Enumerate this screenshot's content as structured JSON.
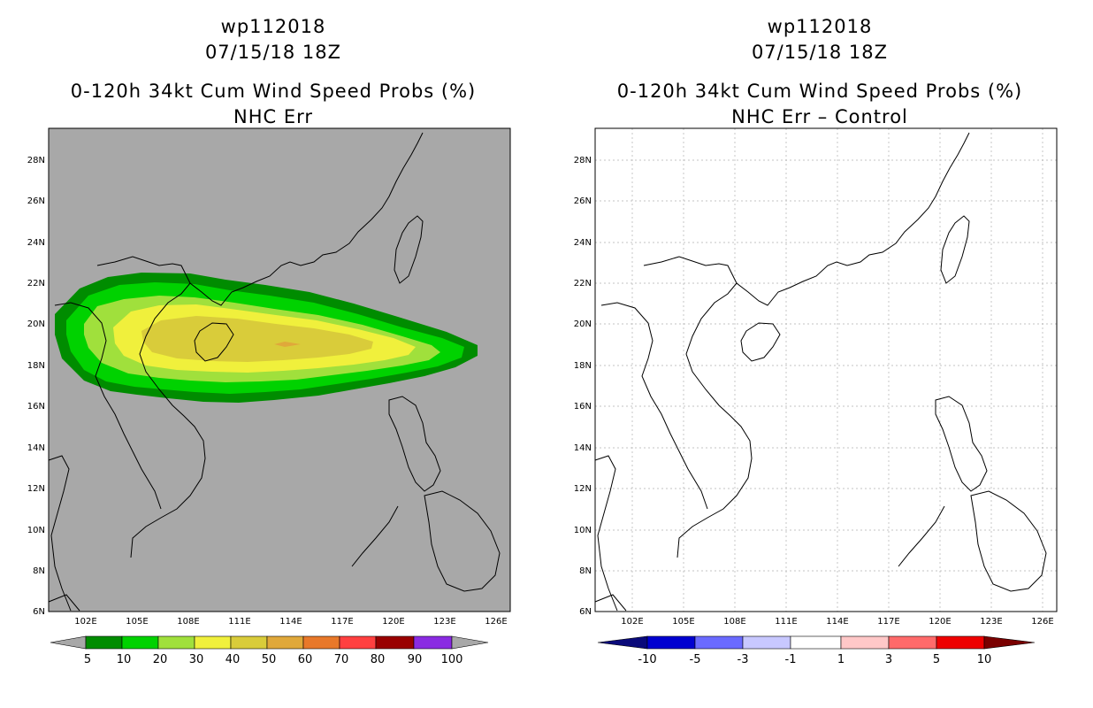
{
  "panels": [
    {
      "id": "left",
      "storm_id": "wp112018",
      "datetime": "07/15/18 18Z",
      "product": "0-120h 34kt Cum Wind Speed Probs (%)",
      "subtitle": "NHC Err",
      "background": "#a8a8a8",
      "gridlines": false,
      "colorbar": {
        "labels": [
          "5",
          "10",
          "20",
          "30",
          "40",
          "50",
          "60",
          "70",
          "80",
          "90",
          "100"
        ],
        "colors": [
          "#008c00",
          "#00d200",
          "#a0e03c",
          "#f0f03c",
          "#d9cc3a",
          "#e0a83a",
          "#e8782a",
          "#ff4040",
          "#990000",
          "#8a2be2"
        ],
        "under_color": "#a8a8a8",
        "over_color": "#a8a8a8"
      }
    },
    {
      "id": "right",
      "storm_id": "wp112018",
      "datetime": "07/15/18 18Z",
      "product": "0-120h 34kt Cum Wind Speed Probs (%)",
      "subtitle": "NHC Err – Control",
      "background": "#ffffff",
      "gridlines": true,
      "colorbar": {
        "labels": [
          "-10",
          "-5",
          "-3",
          "-1",
          "1",
          "3",
          "5",
          "10"
        ],
        "colors": [
          "#0000d0",
          "#6a6aff",
          "#c8c8ff",
          "#ffffff",
          "#ffc8c8",
          "#ff6a6a",
          "#ee0000"
        ],
        "under_color": "#0a0a7a",
        "over_color": "#7a0000"
      }
    }
  ],
  "map": {
    "lon_range": [
      100,
      127
    ],
    "lat_range": [
      6,
      29.5
    ],
    "lon_ticks": [
      "102E",
      "105E",
      "108E",
      "111E",
      "114E",
      "117E",
      "120E",
      "123E",
      "126E"
    ],
    "lat_ticks": [
      "6N",
      "8N",
      "10N",
      "12N",
      "14N",
      "16N",
      "18N",
      "20N",
      "22N",
      "24N",
      "26N",
      "28N"
    ]
  }
}
